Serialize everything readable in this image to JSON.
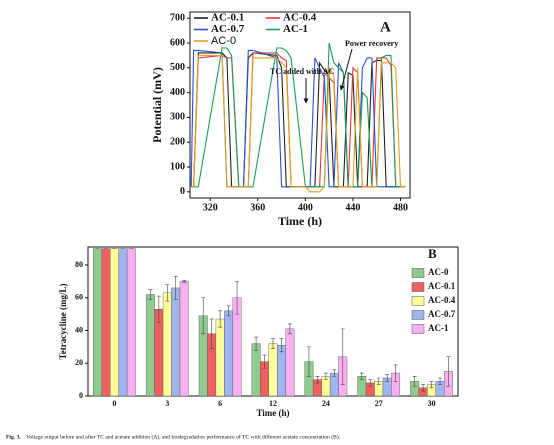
{
  "chart_data": [
    {
      "type": "line",
      "panel_label": "A",
      "x_label": "Time (h)",
      "y_label": "Potential (mV)",
      "annotations": [
        {
          "text": "TC added with AC"
        },
        {
          "text": "Power recovery"
        }
      ],
      "x": [
        304,
        306,
        310,
        330,
        334,
        338,
        344,
        348,
        352,
        356,
        376,
        380,
        384,
        388,
        400,
        404,
        408,
        412,
        416,
        420,
        424,
        428,
        432,
        436,
        440,
        444,
        448,
        452,
        456,
        460,
        464,
        468,
        472,
        476,
        480,
        484
      ],
      "series": [
        {
          "name": "AC-0.1",
          "color": "#222222",
          "values": [
            20,
            20,
            560,
            560,
            540,
            20,
            20,
            20,
            540,
            560,
            550,
            500,
            20,
            20,
            20,
            20,
            20,
            520,
            490,
            470,
            20,
            20,
            20,
            480,
            470,
            20,
            20,
            20,
            520,
            530,
            530,
            20,
            20,
            20,
            20,
            20
          ]
        },
        {
          "name": "AC-0.4",
          "color": "#e0393a",
          "values": [
            20,
            20,
            540,
            550,
            540,
            540,
            20,
            20,
            20,
            560,
            560,
            540,
            530,
            20,
            20,
            20,
            20,
            20,
            480,
            460,
            440,
            20,
            20,
            20,
            500,
            480,
            20,
            20,
            20,
            540,
            540,
            540,
            510,
            20,
            20,
            20
          ]
        },
        {
          "name": "AC-0.7",
          "color": "#2a4fd0",
          "values": [
            20,
            570,
            570,
            560,
            20,
            20,
            20,
            20,
            570,
            570,
            540,
            20,
            20,
            20,
            20,
            20,
            540,
            500,
            460,
            20,
            20,
            520,
            480,
            20,
            20,
            20,
            500,
            540,
            540,
            20,
            20,
            20,
            20,
            20,
            20,
            20
          ]
        },
        {
          "name": "AC-1",
          "color": "#1a9e5a",
          "values": [
            20,
            20,
            20,
            580,
            580,
            550,
            20,
            20,
            20,
            20,
            580,
            580,
            570,
            540,
            20,
            20,
            20,
            20,
            20,
            600,
            520,
            500,
            480,
            20,
            20,
            20,
            400,
            380,
            20,
            20,
            540,
            550,
            550,
            20,
            20,
            20
          ]
        },
        {
          "name": "AC-0",
          "color": "#e0a020",
          "values": [
            20,
            20,
            550,
            550,
            20,
            20,
            20,
            20,
            20,
            540,
            540,
            520,
            500,
            20,
            20,
            0,
            0,
            0,
            20,
            500,
            470,
            20,
            20,
            20,
            20,
            500,
            20,
            20,
            20,
            20,
            520,
            520,
            520,
            500,
            20,
            20
          ]
        }
      ],
      "xlim": [
        303,
        488
      ],
      "xticks": [
        320,
        360,
        400,
        440,
        480
      ],
      "ylim": [
        -25,
        725
      ],
      "yticks": [
        0,
        100,
        200,
        300,
        400,
        500,
        600,
        700
      ]
    },
    {
      "type": "bar",
      "panel_label": "B",
      "x_label": "Time (h)",
      "y_label": "Tetracycline (mg/L)",
      "categories": [
        "0",
        "3",
        "6",
        "12",
        "24",
        "27",
        "30"
      ],
      "series": [
        {
          "name": "AC-0",
          "color": "#8fca8f",
          "values": [
            90,
            62,
            49,
            32,
            21,
            12,
            9
          ],
          "errors": [
            0,
            3,
            11,
            4,
            9,
            2,
            3
          ]
        },
        {
          "name": "AC-0.1",
          "color": "#f06060",
          "values": [
            90,
            53,
            38,
            21,
            10,
            8,
            5
          ],
          "errors": [
            0,
            8,
            9,
            4,
            2,
            2,
            2
          ]
        },
        {
          "name": "AC-0.4",
          "color": "#ffff99",
          "values": [
            90,
            63,
            47,
            32,
            12,
            9,
            7
          ],
          "errors": [
            0,
            5,
            5,
            3,
            2,
            2,
            2
          ]
        },
        {
          "name": "AC-0.7",
          "color": "#a0b4f0",
          "values": [
            90,
            66,
            52,
            31,
            14,
            11,
            9
          ],
          "errors": [
            0,
            7,
            3,
            4,
            2,
            2,
            2
          ]
        },
        {
          "name": "AC-1",
          "color": "#f8b0f0",
          "values": [
            90,
            70,
            60,
            41,
            24,
            14,
            15
          ],
          "errors": [
            0,
            0.5,
            10,
            3,
            17,
            5,
            9
          ]
        }
      ],
      "ylim": [
        0,
        91
      ],
      "yticks": [
        0,
        20,
        40,
        60,
        80
      ]
    }
  ],
  "caption_label": "Fig. 3.",
  "caption": "Voltage output before and after TC and acetate addition (A), and biodegradation performance of TC with different acetate concentration (B)."
}
